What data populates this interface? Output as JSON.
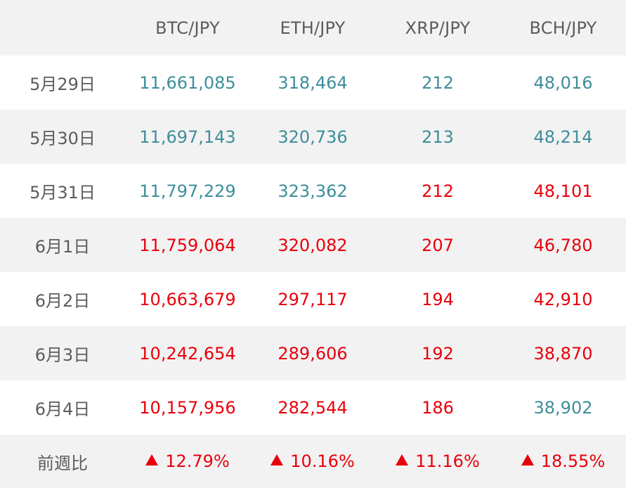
{
  "header": {
    "date_label": "",
    "pairs": [
      "BTC/JPY",
      "ETH/JPY",
      "XRP/JPY",
      "BCH/JPY"
    ]
  },
  "colors": {
    "up": "#3e8e9a",
    "down": "#e8000b",
    "header_bg": "#f2f2f2",
    "label_text": "#5c5c5c"
  },
  "rows": [
    {
      "date": "5月29日",
      "values": [
        "11,661,085",
        "318,464",
        "212",
        "48,016"
      ],
      "trend": [
        "up",
        "up",
        "up",
        "up"
      ]
    },
    {
      "date": "5月30日",
      "values": [
        "11,697,143",
        "320,736",
        "213",
        "48,214"
      ],
      "trend": [
        "up",
        "up",
        "up",
        "up"
      ]
    },
    {
      "date": "5月31日",
      "values": [
        "11,797,229",
        "323,362",
        "212",
        "48,101"
      ],
      "trend": [
        "up",
        "up",
        "down",
        "down"
      ]
    },
    {
      "date": "6月1日",
      "values": [
        "11,759,064",
        "320,082",
        "207",
        "46,780"
      ],
      "trend": [
        "down",
        "down",
        "down",
        "down"
      ]
    },
    {
      "date": "6月2日",
      "values": [
        "10,663,679",
        "297,117",
        "194",
        "42,910"
      ],
      "trend": [
        "down",
        "down",
        "down",
        "down"
      ]
    },
    {
      "date": "6月3日",
      "values": [
        "10,242,654",
        "289,606",
        "192",
        "38,870"
      ],
      "trend": [
        "down",
        "down",
        "down",
        "down"
      ]
    },
    {
      "date": "6月4日",
      "values": [
        "10,157,956",
        "282,544",
        "186",
        "38,902"
      ],
      "trend": [
        "down",
        "down",
        "down",
        "up"
      ]
    }
  ],
  "summary": {
    "label": "前週比",
    "icon": "triangle-up-icon",
    "changes": [
      "12.79%",
      "10.16%",
      "11.16%",
      "18.55%"
    ]
  }
}
